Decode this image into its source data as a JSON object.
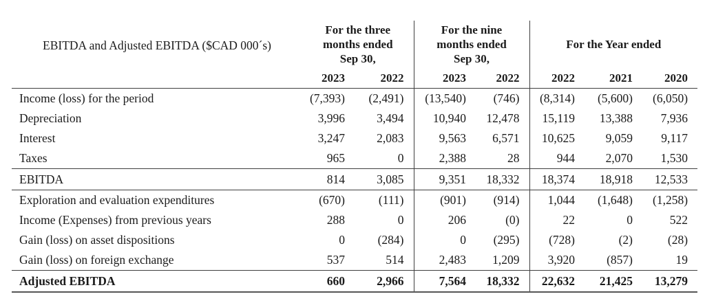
{
  "table": {
    "title": "EBITDA and Adjusted EBITDA ($CAD 000´s)",
    "column_groups": [
      {
        "title_lines": [
          "For the three",
          "months ended",
          "Sep 30,"
        ],
        "years": [
          "2023",
          "2022"
        ]
      },
      {
        "title_lines": [
          "For the nine",
          "months ended",
          "Sep 30,"
        ],
        "years": [
          "2023",
          "2022"
        ]
      },
      {
        "title_lines": [
          "For the Year ended"
        ],
        "years": [
          "2022",
          "2021",
          "2020"
        ]
      }
    ],
    "rows": [
      {
        "label": "Income (loss) for the period",
        "kind": "normal",
        "values": [
          "(7,393)",
          "(2,491)",
          "(13,540)",
          "(746)",
          "(8,314)",
          "(5,600)",
          "(6,050)"
        ]
      },
      {
        "label": "Depreciation",
        "kind": "normal",
        "values": [
          "3,996",
          "3,494",
          "10,940",
          "12,478",
          "15,119",
          "13,388",
          "7,936"
        ]
      },
      {
        "label": "Interest",
        "kind": "normal",
        "values": [
          "3,247",
          "2,083",
          "9,563",
          "6,571",
          "10,625",
          "9,059",
          "9,117"
        ]
      },
      {
        "label": "Taxes",
        "kind": "normal",
        "values": [
          "965",
          "0",
          "2,388",
          "28",
          "944",
          "2,070",
          "1,530"
        ]
      },
      {
        "label": "EBITDA",
        "kind": "subtotal",
        "values": [
          "814",
          "3,085",
          "9,351",
          "18,332",
          "18,374",
          "18,918",
          "12,533"
        ]
      },
      {
        "label": "Exploration and evaluation expenditures",
        "kind": "normal",
        "values": [
          "(670)",
          "(111)",
          "(901)",
          "(914)",
          "1,044",
          "(1,648)",
          "(1,258)"
        ]
      },
      {
        "label": "Income (Expenses) from previous years",
        "kind": "normal",
        "values": [
          "288",
          "0",
          "206",
          "(0)",
          "22",
          "0",
          "522"
        ]
      },
      {
        "label": "Gain (loss) on asset dispositions",
        "kind": "normal",
        "values": [
          "0",
          "(284)",
          "0",
          "(295)",
          "(728)",
          "(2)",
          "(28)"
        ]
      },
      {
        "label": "Gain (loss) on foreign exchange",
        "kind": "normal",
        "values": [
          "537",
          "514",
          "2,483",
          "1,209",
          "3,920",
          "(857)",
          "19"
        ]
      },
      {
        "label": "Adjusted EBITDA",
        "kind": "total",
        "values": [
          "660",
          "2,966",
          "7,564",
          "18,332",
          "22,632",
          "21,425",
          "13,279"
        ]
      }
    ]
  }
}
